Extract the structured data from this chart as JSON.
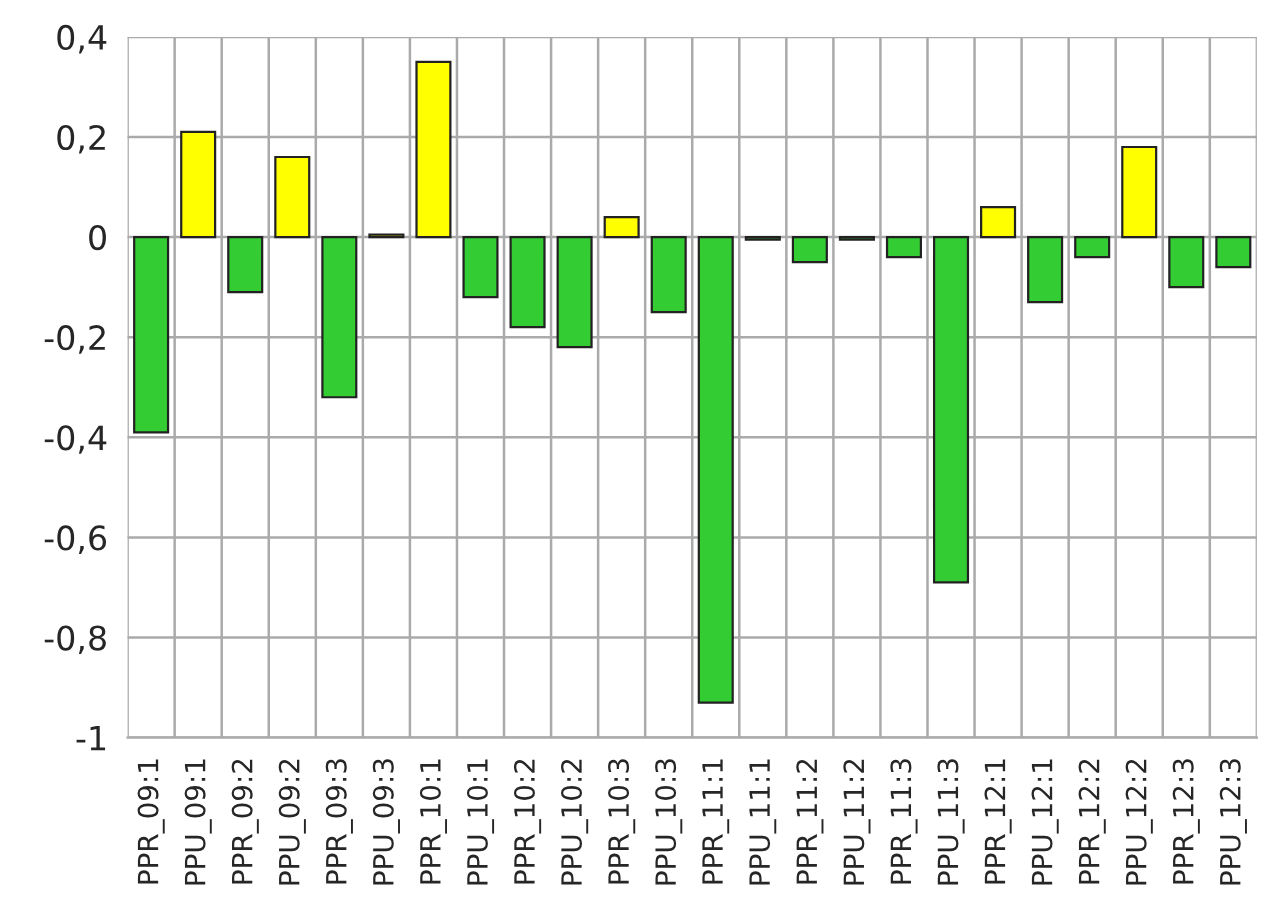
{
  "chart_data": {
    "type": "bar",
    "categories": [
      "PPR_09:1",
      "PPU_09:1",
      "PPR_09:2",
      "PPU_09:2",
      "PPR_09:3",
      "PPU_09:3",
      "PPR_10:1",
      "PPU_10:1",
      "PPR_10:2",
      "PPU_10:2",
      "PPR_10:3",
      "PPU_10:3",
      "PPR_11:1",
      "PPU_11:1",
      "PPR_11:2",
      "PPU_11:2",
      "PPR_11:3",
      "PPU_11:3",
      "PPR_12:1",
      "PPU_12:1",
      "PPR_12:2",
      "PPU_12:2",
      "PPR_12:3",
      "PPU_12:3"
    ],
    "values": [
      -0.39,
      0.21,
      -0.11,
      0.16,
      -0.32,
      0.005,
      0.35,
      -0.12,
      -0.18,
      -0.22,
      0.04,
      -0.15,
      -0.93,
      -0.005,
      -0.05,
      -0.005,
      -0.04,
      -0.69,
      0.06,
      -0.13,
      -0.04,
      0.18,
      -0.1,
      -0.06
    ],
    "colors": [
      "#33cc33",
      "#ffff00",
      "#33cc33",
      "#ffff00",
      "#33cc33",
      "#ffff00",
      "#ffff00",
      "#33cc33",
      "#33cc33",
      "#33cc33",
      "#ffff00",
      "#33cc33",
      "#33cc33",
      "#33cc33",
      "#33cc33",
      "#33cc33",
      "#33cc33",
      "#33cc33",
      "#ffff00",
      "#33cc33",
      "#33cc33",
      "#ffff00",
      "#33cc33",
      "#33cc33"
    ],
    "ylim": [
      -1,
      0.4
    ],
    "yticks": [
      {
        "value": -1,
        "label": "-1"
      },
      {
        "value": -0.8,
        "label": "-0,8"
      },
      {
        "value": -0.6,
        "label": "-0,6"
      },
      {
        "value": -0.4,
        "label": "-0,4"
      },
      {
        "value": -0.2,
        "label": "-0,2"
      },
      {
        "value": 0,
        "label": "0"
      },
      {
        "value": 0.2,
        "label": "0,2"
      },
      {
        "value": 0.4,
        "label": "0,4"
      }
    ],
    "grid": true
  }
}
